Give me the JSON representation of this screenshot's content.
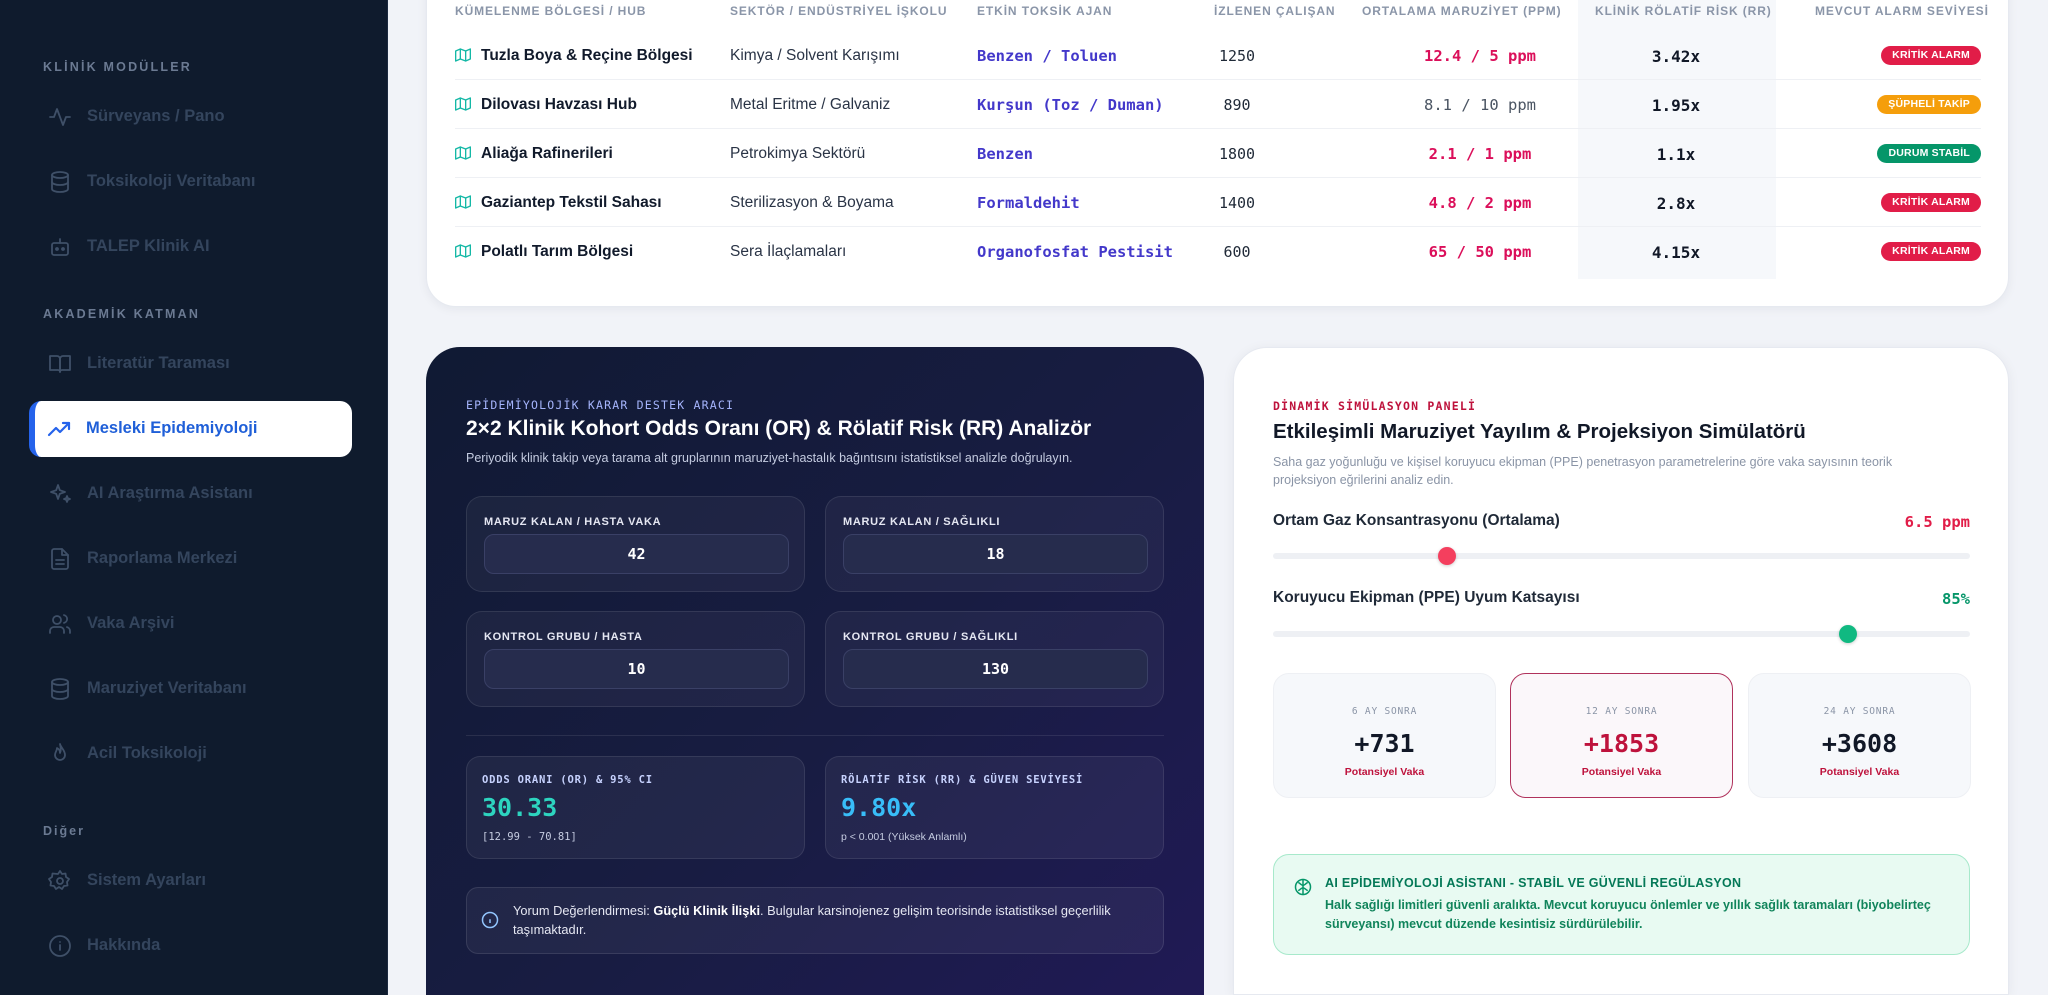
{
  "sidebar": {
    "sections": [
      {
        "title": "KLİNİK MODÜLLER"
      },
      {
        "title": "AKADEMİK KATMAN"
      },
      {
        "title": "Diğer"
      }
    ],
    "items": [
      {
        "label": "Sürveyans / Pano",
        "icon": "activity-icon"
      },
      {
        "label": "Toksikoloji Veritabanı",
        "icon": "database-icon"
      },
      {
        "label": "TALEP Klinik AI",
        "icon": "bot-icon"
      },
      {
        "label": "Literatür Taraması",
        "icon": "book-icon"
      },
      {
        "label": "Mesleki Epidemiyoloji",
        "icon": "trending-up-icon",
        "active": true
      },
      {
        "label": "AI Araştırma Asistanı",
        "icon": "sparkles-icon"
      },
      {
        "label": "Raporlama Merkezi",
        "icon": "file-text-icon"
      },
      {
        "label": "Vaka Arşivi",
        "icon": "users-icon"
      },
      {
        "label": "Maruziyet Veritabanı",
        "icon": "database-icon"
      },
      {
        "label": "Acil Toksikoloji",
        "icon": "flame-icon"
      },
      {
        "label": "Sistem Ayarları",
        "icon": "gear-icon"
      },
      {
        "label": "Hakkında",
        "icon": "info-icon"
      }
    ]
  },
  "table": {
    "headers": [
      "KÜMELENME BÖLGESİ / HUB",
      "SEKTÖR / ENDÜSTRİYEL İŞKOLU",
      "ETKİN TOKSİK AJAN",
      "İZLENEN ÇALIŞAN",
      "ORTALAMA MARUZİYET (PPM)",
      "KLİNİK RÖLATİF RİSK (RR)",
      "MEVCUT ALARM SEVİYESİ"
    ],
    "rows": [
      {
        "hub": "Tuzla Boya & Reçine Bölgesi",
        "sector": "Kimya / Solvent Karışımı",
        "agent": "Benzen / Toluen",
        "workers": "1250",
        "exposure": "12.4 / 5 ppm",
        "exposure_high": true,
        "rr": "3.42x",
        "alarm": "KRİTİK ALARM",
        "alarm_color": "#e11d48"
      },
      {
        "hub": "Dilovası Havzası Hub",
        "sector": "Metal Eritme / Galvaniz",
        "agent": "Kurşun (Toz / Duman)",
        "workers": "890",
        "exposure": "8.1 / 10 ppm",
        "exposure_high": false,
        "rr": "1.95x",
        "alarm": "ŞÜPHELİ TAKİP",
        "alarm_color": "#f59e0b"
      },
      {
        "hub": "Aliağa Rafinerileri",
        "sector": "Petrokimya Sektörü",
        "agent": "Benzen",
        "workers": "1800",
        "exposure": "2.1 / 1 ppm",
        "exposure_high": true,
        "rr": "1.1x",
        "alarm": "DURUM STABİL",
        "alarm_color": "#059669"
      },
      {
        "hub": "Gaziantep Tekstil Sahası",
        "sector": "Sterilizasyon & Boyama",
        "agent": "Formaldehit",
        "workers": "1400",
        "exposure": "4.8 / 2 ppm",
        "exposure_high": true,
        "rr": "2.8x",
        "alarm": "KRİTİK ALARM",
        "alarm_color": "#e11d48"
      },
      {
        "hub": "Polatlı Tarım Bölgesi",
        "sector": "Sera İlaçlamaları",
        "agent": "Organofosfat Pestisit",
        "workers": "600",
        "exposure": "65 / 50 ppm",
        "exposure_high": true,
        "rr": "4.15x",
        "alarm": "KRİTİK ALARM",
        "alarm_color": "#e11d48"
      }
    ]
  },
  "or_rr": {
    "kicker": "EPİDEMİYOLOJİK KARAR DESTEK ARACI",
    "title": "2×2 Klinik Kohort Odds Oranı (OR) & Rölatif Risk (RR) Analizör",
    "subtitle": "Periyodik klinik takip veya tarama alt gruplarının maruziyet-hastalık bağıntısını istatistiksel analizle doğrulayın.",
    "inputs": [
      {
        "label": "MARUZ KALAN / HASTA VAKA",
        "value": "42"
      },
      {
        "label": "MARUZ KALAN / SAĞLIKLI",
        "value": "18"
      },
      {
        "label": "KONTROL GRUBU / HASTA",
        "value": "10"
      },
      {
        "label": "KONTROL GRUBU / SAĞLIKLI",
        "value": "130"
      }
    ],
    "or_label": "ODDS ORANI (OR) & 95% CI",
    "or_value": "30.33",
    "or_ci": "[12.99 - 70.81]",
    "rr_label": "RÖLATİF RİSK (RR) & GÜVEN SEVİYESİ",
    "rr_value": "9.80x",
    "rr_note": "p < 0.001 (Yüksek Anlamlı)",
    "note_prefix": "Yorum Değerlendirmesi: ",
    "note_bold": "Güçlü Klinik İlişki",
    "note_rest": ". Bulgular karsinojenez gelişim teorisinde istatistiksel geçerlilik taşımaktadır."
  },
  "simulator": {
    "kicker": "DİNAMİK SİMÜLASYON PANELİ",
    "title": "Etkileşimli Maruziyet Yayılım & Projeksiyon Simülatörü",
    "subtitle": "Saha gaz yoğunluğu ve kişisel koruyucu ekipman (PPE) penetrasyon parametrelerine göre vaka sayısının teorik projeksiyon eğrilerini analiz edin.",
    "slider1": {
      "label": "Ortam Gaz Konsantrasyonu (Ortalama)",
      "value": "6.5 ppm",
      "fraction": 0.25,
      "color": "#f43f5e"
    },
    "slider2": {
      "label": "Koruyucu Ekipman (PPE) Uyum Katsayısı",
      "value": "85%",
      "fraction": 0.825,
      "color": "#10b981"
    },
    "projections": [
      {
        "label": "6 AY SONRA",
        "value": "+731",
        "caption": "Potansiyel Vaka"
      },
      {
        "label": "12 AY SONRA",
        "value": "+1853",
        "caption": "Potansiyel Vaka",
        "highlight": true
      },
      {
        "label": "24 AY SONRA",
        "value": "+3608",
        "caption": "Potansiyel Vaka"
      }
    ],
    "ai_head": "AI EPİDEMİYOLOJİ ASİSTANI - STABİL VE GÜVENLİ REGÜLASYON",
    "ai_text": "Halk sağlığı limitleri güvenli aralıkta. Mevcut koruyucu önlemler ve yıllık sağlık taramaları (biyobelirteç sürveyansı) mevcut düzende kesintisiz sürdürülebilir."
  }
}
